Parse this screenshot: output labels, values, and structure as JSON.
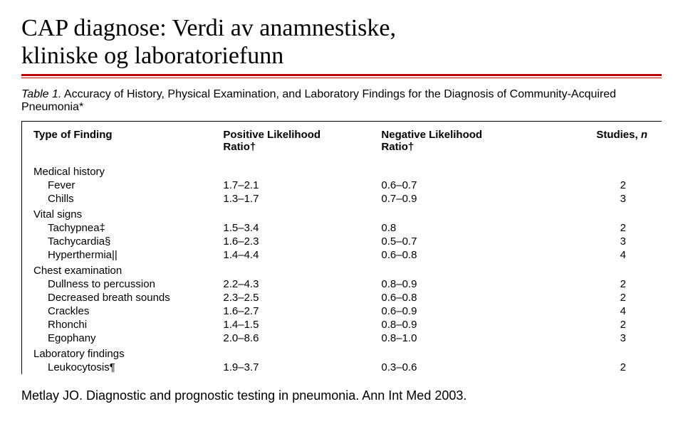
{
  "slide": {
    "title_line1": "CAP diagnose: Verdi av anamnestiske,",
    "title_line2": "kliniske og laboratoriefunn"
  },
  "table": {
    "caption_prefix": "Table 1.",
    "caption_text": " Accuracy of History, Physical Examination, and Laboratory Findings for the Diagnosis of Community-Acquired Pneumonia*",
    "headers": {
      "type": "Type of Finding",
      "pos1": "Positive Likelihood",
      "pos2": "Ratio†",
      "neg1": "Negative Likelihood",
      "neg2": "Ratio†",
      "n": "Studies, ",
      "n_ital": "n"
    },
    "sections": [
      {
        "label": "Medical history",
        "rows": [
          {
            "finding": "Fever",
            "pos": "1.7–2.1",
            "neg": "0.6–0.7",
            "n": "2"
          },
          {
            "finding": "Chills",
            "pos": "1.3–1.7",
            "neg": "0.7–0.9",
            "n": "3"
          }
        ]
      },
      {
        "label": "Vital signs",
        "rows": [
          {
            "finding": "Tachypnea‡",
            "pos": "1.5–3.4",
            "neg": "0.8",
            "n": "2"
          },
          {
            "finding": "Tachycardia§",
            "pos": "1.6–2.3",
            "neg": "0.5–0.7",
            "n": "3"
          },
          {
            "finding": "Hyperthermia||",
            "pos": "1.4–4.4",
            "neg": "0.6–0.8",
            "n": "4"
          }
        ]
      },
      {
        "label": "Chest examination",
        "rows": [
          {
            "finding": "Dullness to percussion",
            "pos": "2.2–4.3",
            "neg": "0.8–0.9",
            "n": "2"
          },
          {
            "finding": "Decreased breath sounds",
            "pos": "2.3–2.5",
            "neg": "0.6–0.8",
            "n": "2"
          },
          {
            "finding": "Crackles",
            "pos": "1.6–2.7",
            "neg": "0.6–0.9",
            "n": "4"
          },
          {
            "finding": "Rhonchi",
            "pos": "1.4–1.5",
            "neg": "0.8–0.9",
            "n": "2"
          },
          {
            "finding": "Egophany",
            "pos": "2.0–8.6",
            "neg": "0.8–1.0",
            "n": "3"
          }
        ]
      },
      {
        "label": "Laboratory findings",
        "rows": [
          {
            "finding": "Leukocytosis¶",
            "pos": "1.9–3.7",
            "neg": "0.3–0.6",
            "n": "2"
          }
        ]
      }
    ]
  },
  "citation": "Metlay JO. Diagnostic and prognostic testing in pneumonia. Ann Int Med 2003.",
  "colors": {
    "rule": "#c00000",
    "text": "#000000",
    "bg": "#ffffff"
  }
}
